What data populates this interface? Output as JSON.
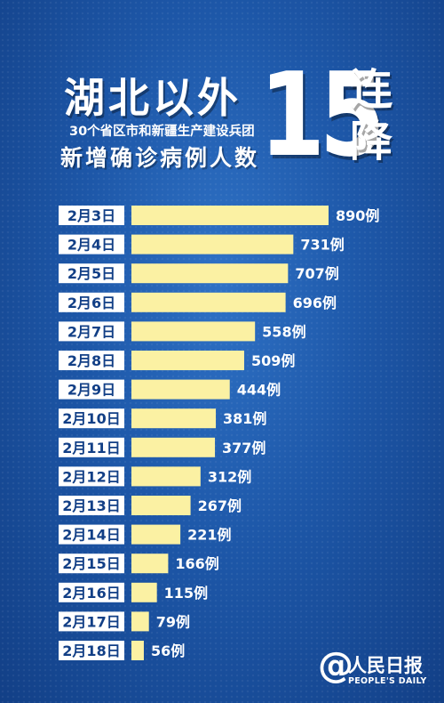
{
  "header": {
    "main_title": "湖北以外",
    "subtitle": "30个省区市和新疆生产建设兵团",
    "third_line": "新增确诊病例人数",
    "big_number": "15",
    "char_top": "连",
    "char_bottom": "降"
  },
  "logo": {
    "symbol": "@",
    "name_cn": "人民日报",
    "name_en": "PEOPLE'S DAILY"
  },
  "colors": {
    "bar": "#fbf1a3",
    "label_box": "#ffffff",
    "label_text": "#123f86",
    "value_text": "#ffffff"
  },
  "chart_data": {
    "type": "bar",
    "orientation": "horizontal",
    "categories": [
      "2月3日",
      "2月4日",
      "2月5日",
      "2月6日",
      "2月7日",
      "2月8日",
      "2月9日",
      "2月10日",
      "2月11日",
      "2月12日",
      "2月13日",
      "2月14日",
      "2月15日",
      "2月16日",
      "2月17日",
      "2月18日"
    ],
    "values": [
      890,
      731,
      707,
      696,
      558,
      509,
      444,
      381,
      377,
      312,
      267,
      221,
      166,
      115,
      79,
      56
    ],
    "value_suffix": "例",
    "xlim": [
      0,
      890
    ],
    "grid": false,
    "legend": "none"
  }
}
